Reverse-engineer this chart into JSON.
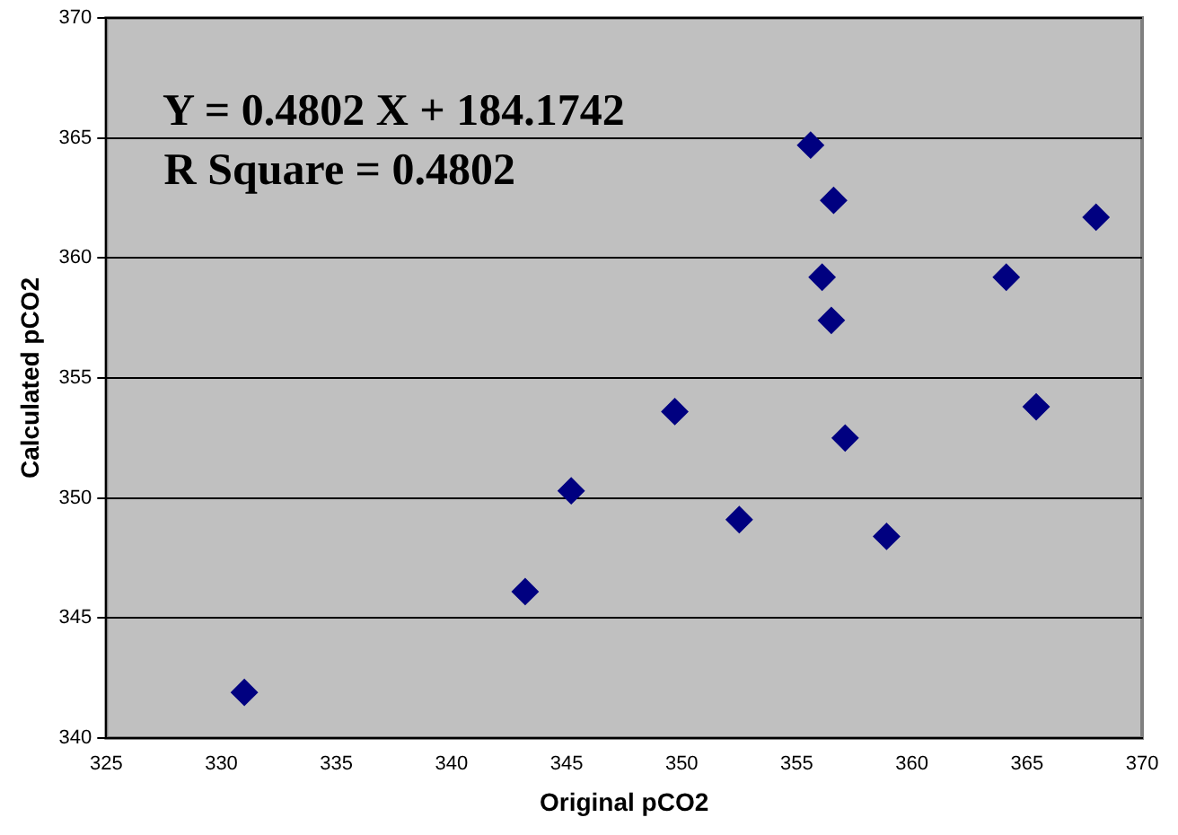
{
  "chart_data": {
    "type": "scatter",
    "xlabel": "Original pCO2",
    "ylabel": "Calculated pCO2",
    "annotations": [
      "Y = 0.4802 X + 184.1742",
      "R Square = 0.4802"
    ],
    "series": [
      {
        "color": "#000080",
        "x": [
          331.0,
          343.2,
          345.2,
          355.6,
          356.6,
          368.0,
          356.1,
          364.1,
          356.5,
          349.7,
          365.4,
          357.1,
          352.5,
          358.9
        ],
        "values": [
          341.9,
          346.1,
          350.3,
          364.7,
          362.4,
          361.7,
          359.2,
          359.2,
          357.4,
          353.6,
          353.8,
          352.5,
          349.1,
          348.4
        ]
      }
    ],
    "xlim": [
      325,
      370
    ],
    "xticks": [
      325,
      330,
      335,
      340,
      345,
      350,
      355,
      360,
      365,
      370
    ],
    "ylim": [
      340,
      370
    ],
    "yticks": [
      340,
      345,
      350,
      355,
      360,
      365,
      370
    ],
    "grid": "y",
    "legend": false,
    "marker": "diamond"
  }
}
